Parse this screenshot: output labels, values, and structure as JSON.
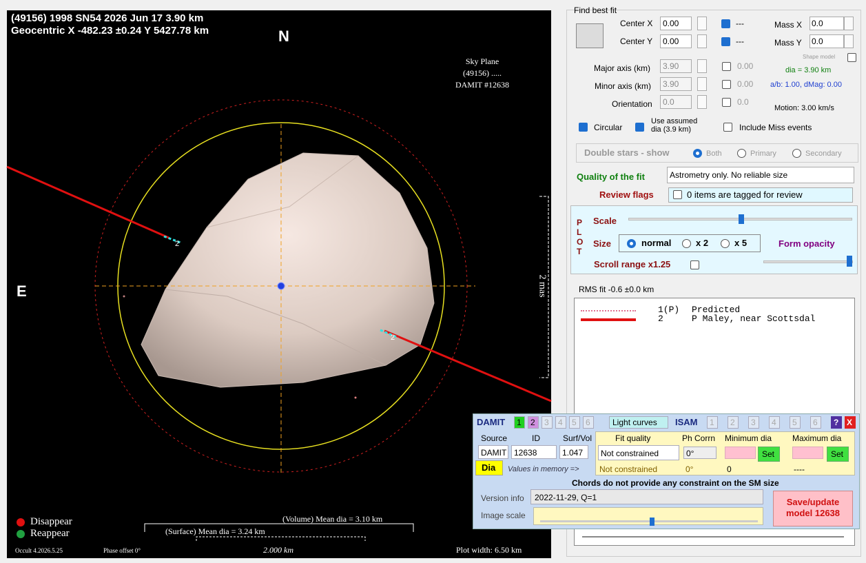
{
  "plot": {
    "object_line": "(49156) 1998 SN54  2026 Jun 17   3.90 km",
    "position_line": "Geocentric X -482.23 ±0.24  Y 5427.78 km",
    "north": "N",
    "east": "E",
    "sky_plane": "Sky Plane",
    "object_short": "(49156) .....",
    "damit_id": "DAMIT #12638",
    "angular_scale": "2 mas",
    "chord_labels": [
      "2",
      "2"
    ],
    "legend": [
      "Disappear",
      "Reappear"
    ],
    "version": "Occult 4.2026.5.25",
    "phase_offset": "Phase offset 0°",
    "volume_dia": "(Volume) Mean dia = 3.10 km",
    "surface_dia": "(Surface) Mean dia = 3.24 km",
    "scale_bar": "2.000 km",
    "plot_width": "Plot width: 6.50 km"
  },
  "fit": {
    "title": "Find best fit",
    "center_x": {
      "label": "Center X",
      "value": "0.00",
      "flag": "---"
    },
    "center_y": {
      "label": "Center Y",
      "value": "0.00",
      "flag": "---"
    },
    "mass_x": {
      "label": "Mass X",
      "value": "0.0"
    },
    "mass_y": {
      "label": "Mass Y",
      "value": "0.0"
    },
    "shape_model": "Shape model",
    "major_axis": {
      "label": "Major axis (km)",
      "value": "3.90",
      "uncertainty": "0.00"
    },
    "minor_axis": {
      "label": "Minor axis (km)",
      "value": "3.90",
      "uncertainty": "0.00"
    },
    "orientation": {
      "label": "Orientation",
      "value": "0.0",
      "uncertainty": "0.0"
    },
    "dia": "dia = 3.90 km",
    "ratio": "a/b: 1.00, dMag: 0.00",
    "motion": "Motion: 3.00 km/s",
    "circular": "Circular",
    "use_assumed": "Use assumed dia (3.9 km)",
    "include_miss": "Include Miss events"
  },
  "double_stars": {
    "label": "Double stars - show",
    "options": [
      "Both",
      "Primary",
      "Secondary"
    ]
  },
  "quality": {
    "label": "Quality of the fit",
    "value": "Astrometry only. No reliable size"
  },
  "review": {
    "label": "Review flags",
    "value": "0 items are tagged for review"
  },
  "plot_settings": {
    "letters": [
      "P",
      "L",
      "O",
      "T"
    ],
    "scale": "Scale",
    "size": "Size",
    "size_options": [
      "normal",
      "x 2",
      "x 5"
    ],
    "form_opacity": "Form opacity",
    "scroll_range": "Scroll range x1.25"
  },
  "rms": "RMS fit -0.6 ±0.0 km",
  "chords": [
    {
      "id": "1(P)",
      "name": "Predicted"
    },
    {
      "id": "2",
      "name": "P Maley, near Scottsdal"
    }
  ],
  "damit": {
    "title": "DAMIT",
    "models": [
      "1",
      "2",
      "3",
      "4",
      "5",
      "6"
    ],
    "light_curves": "Light curves",
    "isam": "ISAM",
    "isam_models": [
      "1",
      "2",
      "3",
      "4",
      "5",
      "6"
    ],
    "help": "?",
    "close": "X",
    "headers": [
      "Source",
      "ID",
      "Surf/Vol",
      "Fit quality",
      "Ph Corrn",
      "Minimum dia",
      "Maximum dia"
    ],
    "current": [
      "DAMIT",
      "12638",
      "1.047",
      "Not constrained",
      "0°"
    ],
    "set": [
      "Set",
      "Set"
    ],
    "dia_button": "Dia",
    "memory_label": "Values in memory =>",
    "memory": [
      "Not constrained",
      "0°",
      "0",
      "----"
    ],
    "constraint_note": "Chords do not provide any constraint on the SM size",
    "version_label": "Version info",
    "version": "2022-11-29, Q=1",
    "image_scale": "Image scale",
    "save": "Save/update model 12638"
  }
}
